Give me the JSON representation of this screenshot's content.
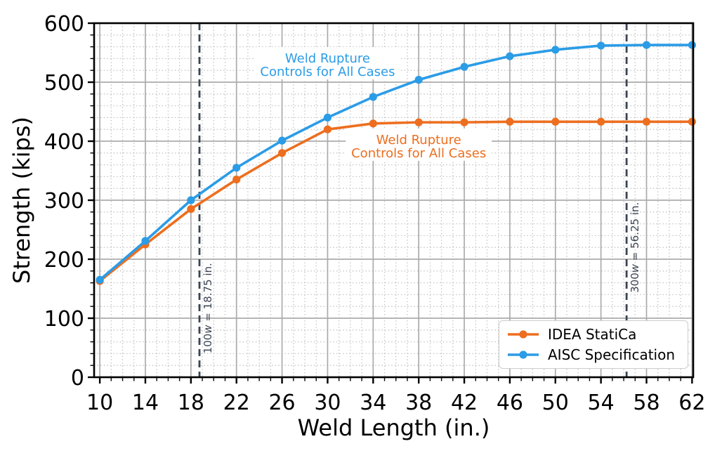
{
  "chart_data": {
    "type": "line",
    "title": "",
    "xlabel": "Weld Length (in.)",
    "ylabel": "Strength (kips)",
    "x": [
      10,
      14,
      18,
      22,
      26,
      30,
      34,
      38,
      42,
      46,
      50,
      54,
      58,
      62
    ],
    "series": [
      {
        "name": "IDEA StatiCa",
        "color": "#ED6E1F",
        "marker": "circle",
        "values": [
          163,
          225,
          285,
          335,
          380,
          420,
          430,
          432,
          432,
          433,
          433,
          433,
          433,
          433
        ]
      },
      {
        "name": "AISC Specification",
        "color": "#2B9CE6",
        "marker": "circle",
        "values": [
          165,
          231,
          300,
          355,
          401,
          440,
          475,
          504,
          526,
          544,
          555,
          562,
          563,
          563
        ]
      }
    ],
    "xlim": [
      9.5,
      62.1
    ],
    "ylim": [
      0,
      600
    ],
    "xticks": [
      10,
      14,
      18,
      22,
      26,
      30,
      34,
      38,
      42,
      46,
      50,
      54,
      58,
      62
    ],
    "yticks": [
      0,
      100,
      200,
      300,
      400,
      500,
      600
    ],
    "x_minor_step": 1,
    "y_minor_step": 20,
    "grid": {
      "major": "solid",
      "minor": "dotted"
    },
    "legend_position": "lower right",
    "annotations": [
      {
        "lines": [
          "Weld Rupture",
          "Controls for All Cases"
        ],
        "x": 30,
        "y": 531,
        "color": "#2B9CE6"
      },
      {
        "lines": [
          "Weld Rupture",
          "Controls for All Cases"
        ],
        "x": 38,
        "y": 393,
        "color": "#ED6E1F"
      }
    ],
    "vlines": [
      {
        "x": 18.75,
        "label": "100w = 18.75 in.",
        "label_y": 40,
        "color": "#3B4453"
      },
      {
        "x": 56.25,
        "label": "300w = 56.25 in.",
        "label_y": 143,
        "color": "#3B4453"
      }
    ],
    "colors": {
      "frame": "#000000",
      "major_grid": "#ABABAB",
      "minor_grid": "#C4C4C4",
      "tick_label": "#000000"
    }
  }
}
